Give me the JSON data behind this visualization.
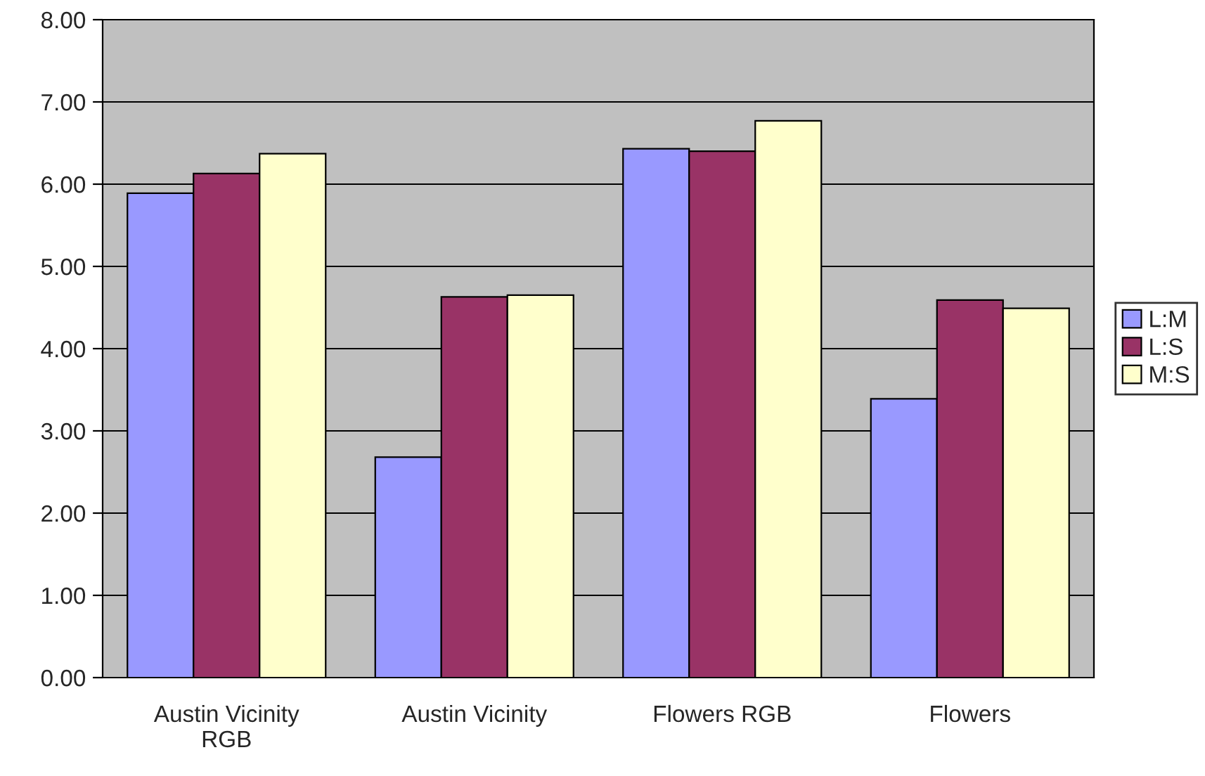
{
  "chart_data": {
    "type": "bar",
    "categories": [
      "Austin Vicinity RGB",
      "Austin Vicinity",
      "Flowers RGB",
      "Flowers"
    ],
    "series": [
      {
        "name": "L:M",
        "color": "#9999ff",
        "values": [
          5.89,
          2.68,
          6.43,
          3.39
        ]
      },
      {
        "name": "L:S",
        "color": "#993366",
        "values": [
          6.13,
          4.63,
          6.4,
          4.59
        ]
      },
      {
        "name": "M:S",
        "color": "#ffffcc",
        "values": [
          6.37,
          4.65,
          6.77,
          4.49
        ]
      }
    ],
    "ylim": [
      0,
      8
    ],
    "yticks": [
      {
        "value": 0,
        "label": "0.00"
      },
      {
        "value": 1,
        "label": "1.00"
      },
      {
        "value": 2,
        "label": "2.00"
      },
      {
        "value": 3,
        "label": "3.00"
      },
      {
        "value": 4,
        "label": "4.00"
      },
      {
        "value": 5,
        "label": "5.00"
      },
      {
        "value": 6,
        "label": "6.00"
      },
      {
        "value": 7,
        "label": "7.00"
      },
      {
        "value": 8,
        "label": "8.00"
      }
    ],
    "grid": "y",
    "legend": "right"
  }
}
